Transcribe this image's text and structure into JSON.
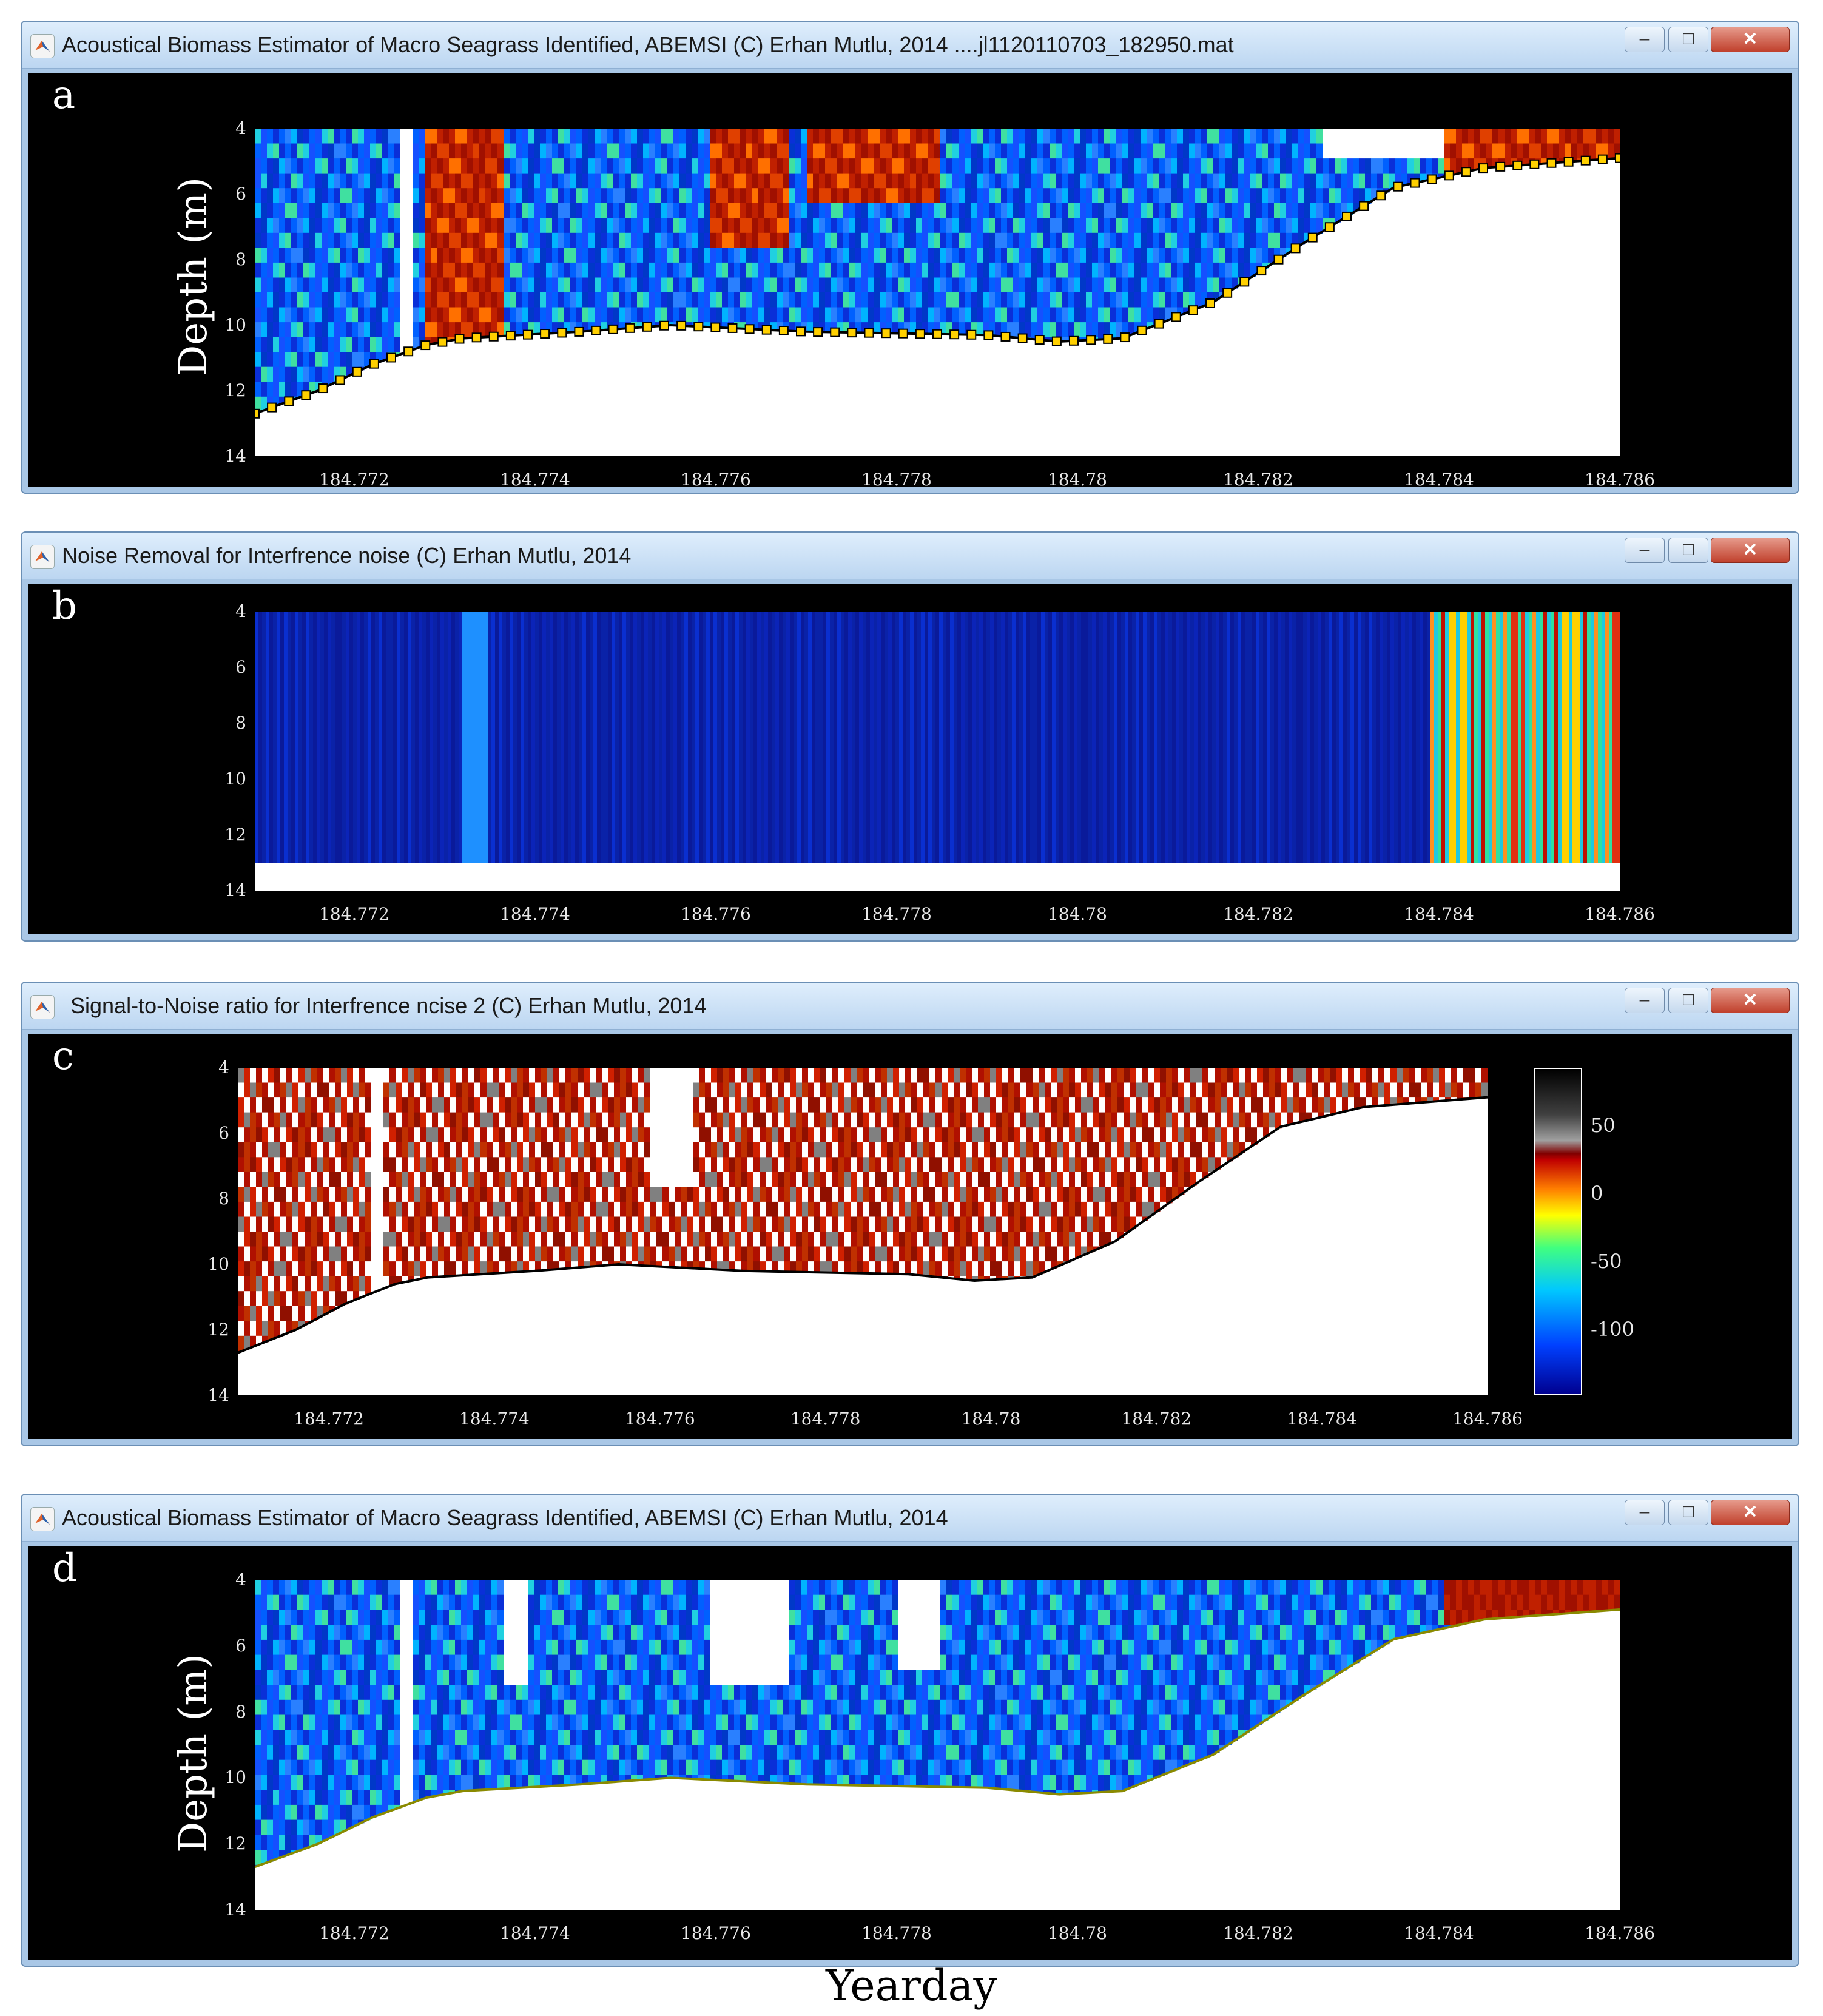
{
  "window_a": {
    "title": "Acoustical Biomass Estimator of Macro Seagrass Identified, ABEMSI (C) Erhan Mutlu, 2014 ....jl1120110703_182950.mat",
    "letter": "a",
    "ylabel": "Depth (m)"
  },
  "window_b": {
    "title": "Noise Removal for Interfrence noise (C) Erhan Mutlu, 2014",
    "letter": "b"
  },
  "window_c": {
    "title": "Signal-to-Noise ratio for Interfrence ncise 2 (C) Erhan Mutlu, 2014",
    "letter": "c",
    "colorbar_ticks": [
      "50",
      "0",
      "-50",
      "-100"
    ]
  },
  "window_d": {
    "title": "Acoustical Biomass Estimator of Macro Seagrass Identified, ABEMSI (C) Erhan Mutlu, 2014",
    "letter": "d",
    "ylabel": "Depth (m)"
  },
  "window_buttons": {
    "minimize": "–",
    "maximize": "□",
    "close": "✕"
  },
  "icons": {
    "app": "matlab-icon"
  },
  "xlabel": "Yearday",
  "chart_data": {
    "type": "heatmap",
    "x_ticks": [
      "184.772",
      "184.774",
      "184.776",
      "184.778",
      "184.78",
      "184.782",
      "184.784",
      "184.786"
    ],
    "y_ticks": [
      "4",
      "6",
      "8",
      "10",
      "12",
      "14"
    ],
    "xlim": [
      184.7709,
      184.786
    ],
    "ylim": [
      4,
      14
    ],
    "y_inverted": true,
    "bottom_depth_line": [
      {
        "x": 184.7709,
        "depth": 12.7
      },
      {
        "x": 184.7716,
        "depth": 12.0
      },
      {
        "x": 184.7722,
        "depth": 11.2
      },
      {
        "x": 184.7728,
        "depth": 10.6
      },
      {
        "x": 184.7732,
        "depth": 10.4
      },
      {
        "x": 184.7745,
        "depth": 10.2
      },
      {
        "x": 184.7755,
        "depth": 10.0
      },
      {
        "x": 184.777,
        "depth": 10.2
      },
      {
        "x": 184.779,
        "depth": 10.3
      },
      {
        "x": 184.7798,
        "depth": 10.5
      },
      {
        "x": 184.7805,
        "depth": 10.4
      },
      {
        "x": 184.7815,
        "depth": 9.3
      },
      {
        "x": 184.7825,
        "depth": 7.5
      },
      {
        "x": 184.7835,
        "depth": 5.8
      },
      {
        "x": 184.7845,
        "depth": 5.2
      },
      {
        "x": 184.786,
        "depth": 4.9
      }
    ],
    "snr_colorbar": {
      "ticks": [
        50,
        0,
        -50,
        -100
      ],
      "min": -140,
      "max": 90
    }
  }
}
